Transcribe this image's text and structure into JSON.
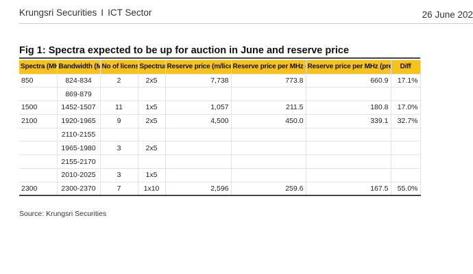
{
  "header": {
    "company": "Krungsri Securities",
    "separator": "I",
    "sector": "ICT Sector",
    "date": "26 June 202"
  },
  "figure": {
    "title": "Fig 1: Spectra expected to be up for auction in June and reserve price",
    "source": "Source: Krungsri Securities"
  },
  "table": {
    "headers": {
      "spectra": "Spectra (MHz)",
      "bandwidth": "Bandwidth (MHz)",
      "licenses": "No of licenses",
      "spectrum": "Spectrum",
      "reserve_price": "Reserve price (m/license)",
      "per_mhz_latest": "Reserve price per MHz (latest)",
      "per_mhz_previous": "Reserve price per MHz (previous)",
      "diff": "Diff"
    },
    "rows": [
      {
        "spectra": "850",
        "bandwidth": "824-834",
        "licenses": "2",
        "spectrum": "2x5",
        "reserve_price": "7,738",
        "latest": "773.8",
        "previous": "660.9",
        "diff": "17.1%"
      },
      {
        "spectra": "",
        "bandwidth": "869-879",
        "licenses": "",
        "spectrum": "",
        "reserve_price": "",
        "latest": "",
        "previous": "",
        "diff": ""
      },
      {
        "spectra": "1500",
        "bandwidth": "1452-1507",
        "licenses": "11",
        "spectrum": "1x5",
        "reserve_price": "1,057",
        "latest": "211.5",
        "previous": "180.8",
        "diff": "17.0%"
      },
      {
        "spectra": "2100",
        "bandwidth": "1920-1965",
        "licenses": "9",
        "spectrum": "2x5",
        "reserve_price": "4,500",
        "latest": "450.0",
        "previous": "339.1",
        "diff": "32.7%"
      },
      {
        "spectra": "",
        "bandwidth": "2110-2155",
        "licenses": "",
        "spectrum": "",
        "reserve_price": "",
        "latest": "",
        "previous": "",
        "diff": ""
      },
      {
        "spectra": "",
        "bandwidth": "1965-1980",
        "licenses": "3",
        "spectrum": "2x5",
        "reserve_price": "",
        "latest": "",
        "previous": "",
        "diff": ""
      },
      {
        "spectra": "",
        "bandwidth": "2155-2170",
        "licenses": "",
        "spectrum": "",
        "reserve_price": "",
        "latest": "",
        "previous": "",
        "diff": ""
      },
      {
        "spectra": "",
        "bandwidth": "2010-2025",
        "licenses": "3",
        "spectrum": "1x5",
        "reserve_price": "",
        "latest": "",
        "previous": "",
        "diff": ""
      },
      {
        "spectra": "2300",
        "bandwidth": "2300-2370",
        "licenses": "7",
        "spectrum": "1x10",
        "reserve_price": "2,596",
        "latest": "259.6",
        "previous": "167.5",
        "diff": "55.0%"
      }
    ]
  }
}
